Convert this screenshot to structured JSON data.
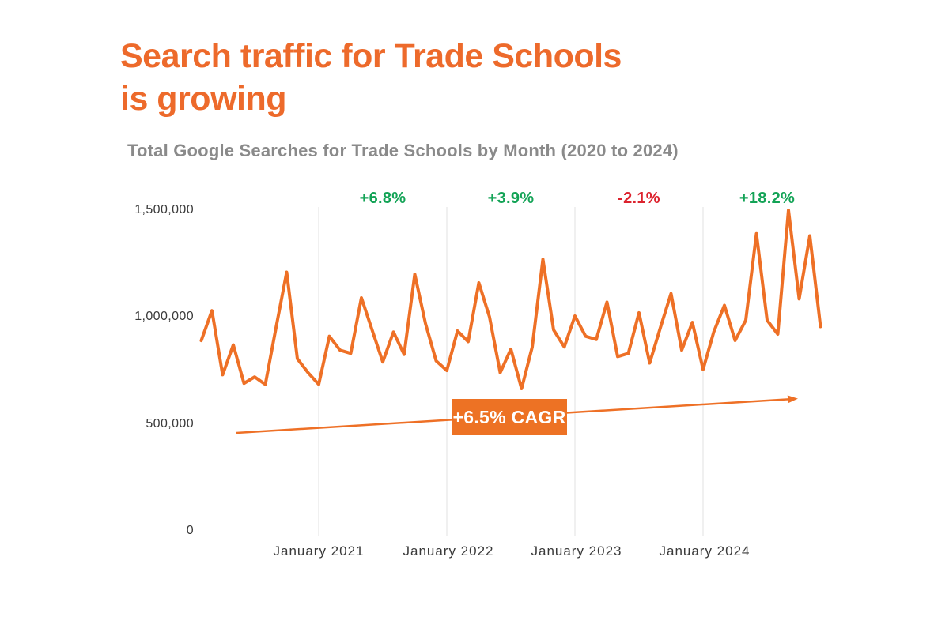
{
  "title": {
    "line1": "Search traffic for Trade Schools",
    "line2": "is growing"
  },
  "subtitle": "Total Google Searches for Trade Schools by Month (2020 to 2024)",
  "colors": {
    "accent_orange": "#ED6A2B",
    "line_orange": "#EE7026",
    "badge_bg": "#ED7224",
    "badge_text": "#FFFFFF",
    "green": "#13A356",
    "red": "#DC232E",
    "gridline": "#ECECEC",
    "axis_text": "#3A3A3A",
    "subtitle_gray": "#8A8A8A"
  },
  "y_axis": {
    "ticks": [
      {
        "label": "1,500,000",
        "value": 1500000
      },
      {
        "label": "1,000,000",
        "value": 1000000
      },
      {
        "label": "500,000",
        "value": 500000
      },
      {
        "label": "0",
        "value": 0
      }
    ]
  },
  "x_axis": {
    "ticks": [
      {
        "label": "January 2021",
        "month_index": 11
      },
      {
        "label": "January 2022",
        "month_index": 23
      },
      {
        "label": "January 2023",
        "month_index": 35
      },
      {
        "label": "January 2024",
        "month_index": 47
      }
    ]
  },
  "annotations": {
    "yoy": [
      {
        "label": "+6.8%",
        "change": "positive",
        "color": "#13A356",
        "center_month_index": 17
      },
      {
        "label": "+3.9%",
        "change": "positive",
        "color": "#13A356",
        "center_month_index": 29
      },
      {
        "label": "-2.1%",
        "change": "negative",
        "color": "#DC232E",
        "center_month_index": 41
      },
      {
        "label": "+18.2%",
        "change": "positive",
        "color": "#13A356",
        "center_month_index": 53
      }
    ],
    "cagr_label": "+6.5% CAGR"
  },
  "chart_data": {
    "type": "line",
    "title": "Total Google Searches for Trade Schools by Month (2020 to 2024)",
    "xlabel": "",
    "ylabel": "",
    "ylim": [
      0,
      1500000
    ],
    "yticks": [
      0,
      500000,
      1000000,
      1500000
    ],
    "ytick_labels": [
      "0",
      "500,000",
      "1,000,000",
      "1,500,000"
    ],
    "xtick_labels": [
      "January 2021",
      "January 2022",
      "January 2023",
      "January 2024"
    ],
    "grid": "vertical-only",
    "legend": "none",
    "series_name": "Total Google Searches",
    "series_color": "#EE7026",
    "x": [
      "Feb 2020",
      "Mar 2020",
      "Apr 2020",
      "May 2020",
      "Jun 2020",
      "Jul 2020",
      "Aug 2020",
      "Sep 2020",
      "Oct 2020",
      "Nov 2020",
      "Dec 2020",
      "Jan 2021",
      "Feb 2021",
      "Mar 2021",
      "Apr 2021",
      "May 2021",
      "Jun 2021",
      "Jul 2021",
      "Aug 2021",
      "Sep 2021",
      "Oct 2021",
      "Nov 2021",
      "Dec 2021",
      "Jan 2022",
      "Feb 2022",
      "Mar 2022",
      "Apr 2022",
      "May 2022",
      "Jun 2022",
      "Jul 2022",
      "Aug 2022",
      "Sep 2022",
      "Oct 2022",
      "Nov 2022",
      "Dec 2022",
      "Jan 2023",
      "Feb 2023",
      "Mar 2023",
      "Apr 2023",
      "May 2023",
      "Jun 2023",
      "Jul 2023",
      "Aug 2023",
      "Sep 2023",
      "Oct 2023",
      "Nov 2023",
      "Dec 2023",
      "Jan 2024",
      "Feb 2024",
      "Mar 2024",
      "Apr 2024",
      "May 2024",
      "Jun 2024",
      "Jul 2024",
      "Aug 2024",
      "Sep 2024",
      "Oct 2024",
      "Nov 2024",
      "Dec 2024"
    ],
    "values": [
      890000,
      1030000,
      730000,
      870000,
      690000,
      720000,
      685000,
      950000,
      1210000,
      805000,
      740000,
      685000,
      910000,
      845000,
      830000,
      1090000,
      940000,
      790000,
      930000,
      825000,
      1200000,
      970000,
      795000,
      750000,
      935000,
      885000,
      1160000,
      1000000,
      740000,
      850000,
      665000,
      860000,
      1270000,
      940000,
      860000,
      1005000,
      910000,
      895000,
      1070000,
      815000,
      830000,
      1020000,
      785000,
      950000,
      1110000,
      845000,
      975000,
      755000,
      930000,
      1055000,
      890000,
      985000,
      1390000,
      985000,
      920000,
      1500000,
      1085000,
      1380000,
      955000
    ],
    "yoy_annotations": [
      {
        "year": 2021,
        "label": "+6.8%"
      },
      {
        "year": 2022,
        "label": "+3.9%"
      },
      {
        "year": 2023,
        "label": "-2.1%"
      },
      {
        "year": 2024,
        "label": "+18.2%"
      }
    ],
    "trend_annotation": "+6.5% CAGR"
  }
}
